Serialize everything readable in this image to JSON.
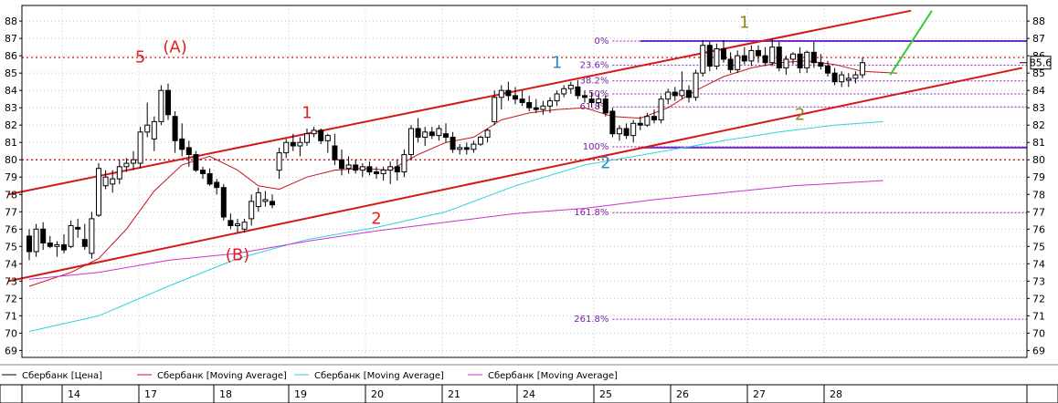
{
  "chart_data": {
    "type": "candlestick",
    "title": "",
    "xlabel": "",
    "ylabel": "",
    "ylim": [
      68.6,
      88.9
    ],
    "y_ticks": [
      69,
      70,
      71,
      72,
      73,
      74,
      75,
      76,
      77,
      78,
      79,
      80,
      81,
      82,
      83,
      84,
      85,
      86,
      87,
      88
    ],
    "x_ticks": [
      "14",
      "17",
      "18",
      "19",
      "20",
      "21",
      "24",
      "25",
      "26",
      "27",
      "28"
    ],
    "last_price_label": "85.6",
    "series": [
      {
        "name": "Сбербанк [Цена]",
        "color": "#000000",
        "kind": "candles",
        "values": [
          [
            75.6,
            76.0,
            74.2,
            74.7
          ],
          [
            74.7,
            76.3,
            74.4,
            76.0
          ],
          [
            76.0,
            76.4,
            74.8,
            75.2
          ],
          [
            75.2,
            75.6,
            74.9,
            75.0
          ],
          [
            75.0,
            75.3,
            74.4,
            75.1
          ],
          [
            75.1,
            75.7,
            74.6,
            74.8
          ],
          [
            75.0,
            76.5,
            74.9,
            76.2
          ],
          [
            76.1,
            76.6,
            75.5,
            76.0
          ],
          [
            75.4,
            76.3,
            74.8,
            75.0
          ],
          [
            74.6,
            77.0,
            74.3,
            76.6
          ],
          [
            76.8,
            79.8,
            76.7,
            79.5
          ],
          [
            78.5,
            79.4,
            78.3,
            79.0
          ],
          [
            78.6,
            79.4,
            78.1,
            78.9
          ],
          [
            78.9,
            80.0,
            78.6,
            79.6
          ],
          [
            79.6,
            80.1,
            79.3,
            79.8
          ],
          [
            79.8,
            80.5,
            79.4,
            80.0
          ],
          [
            79.8,
            81.9,
            79.5,
            81.6
          ],
          [
            81.6,
            83.3,
            81.3,
            82.0
          ],
          [
            81.2,
            82.5,
            80.5,
            82.2
          ],
          [
            82.2,
            84.3,
            82.0,
            84.0
          ],
          [
            84.0,
            84.4,
            82.3,
            82.6
          ],
          [
            82.5,
            82.8,
            80.4,
            81.1
          ],
          [
            81.2,
            82.1,
            80.2,
            80.6
          ],
          [
            80.7,
            81.1,
            79.6,
            80.3
          ],
          [
            80.3,
            80.5,
            79.3,
            79.4
          ],
          [
            79.4,
            79.6,
            78.9,
            79.2
          ],
          [
            79.2,
            79.5,
            78.5,
            78.6
          ],
          [
            78.7,
            78.9,
            78.0,
            78.4
          ],
          [
            78.4,
            78.6,
            76.5,
            76.7
          ],
          [
            76.5,
            76.9,
            76.0,
            76.2
          ],
          [
            76.2,
            76.6,
            75.8,
            76.3
          ],
          [
            76.0,
            76.6,
            75.8,
            76.4
          ],
          [
            76.6,
            78.0,
            76.2,
            77.6
          ],
          [
            77.3,
            78.4,
            77.0,
            78.1
          ],
          [
            77.6,
            78.2,
            77.3,
            77.7
          ],
          [
            77.6,
            78.0,
            77.2,
            77.4
          ],
          [
            79.4,
            80.7,
            78.9,
            80.4
          ],
          [
            80.4,
            81.2,
            80.1,
            81.0
          ],
          [
            81.0,
            81.5,
            80.5,
            80.8
          ],
          [
            80.8,
            81.3,
            80.2,
            81.0
          ],
          [
            81.0,
            81.8,
            80.8,
            81.5
          ],
          [
            81.5,
            81.9,
            81.3,
            81.7
          ],
          [
            81.7,
            81.8,
            80.9,
            81.1
          ],
          [
            81.1,
            81.5,
            80.4,
            81.4
          ],
          [
            80.8,
            81.5,
            79.7,
            80.0
          ],
          [
            80.0,
            80.6,
            79.1,
            79.5
          ],
          [
            79.5,
            80.2,
            79.2,
            79.7
          ],
          [
            79.7,
            80.0,
            79.2,
            79.4
          ],
          [
            79.4,
            79.8,
            79.0,
            79.6
          ],
          [
            79.6,
            79.9,
            79.1,
            79.3
          ],
          [
            79.3,
            79.6,
            78.9,
            79.2
          ],
          [
            79.2,
            79.6,
            78.8,
            79.4
          ],
          [
            79.4,
            79.9,
            78.6,
            79.6
          ],
          [
            79.6,
            80.0,
            78.8,
            79.3
          ],
          [
            79.3,
            80.6,
            79.0,
            80.3
          ],
          [
            80.3,
            82.0,
            80.0,
            81.8
          ],
          [
            81.8,
            82.4,
            81.0,
            81.3
          ],
          [
            81.3,
            81.9,
            80.8,
            81.6
          ],
          [
            81.6,
            81.9,
            81.2,
            81.4
          ],
          [
            81.4,
            82.0,
            81.1,
            81.8
          ],
          [
            81.5,
            82.1,
            81.0,
            81.3
          ],
          [
            81.3,
            81.6,
            80.4,
            80.6
          ],
          [
            80.6,
            80.9,
            80.3,
            80.7
          ],
          [
            80.7,
            81.0,
            80.3,
            80.6
          ],
          [
            80.6,
            81.1,
            80.4,
            80.9
          ],
          [
            80.9,
            81.4,
            80.8,
            81.3
          ],
          [
            81.3,
            81.8,
            81.0,
            81.7
          ],
          [
            82.2,
            84.0,
            82.0,
            83.6
          ],
          [
            83.6,
            84.3,
            82.9,
            84.0
          ],
          [
            84.0,
            84.5,
            83.4,
            83.7
          ],
          [
            83.7,
            84.2,
            83.2,
            83.5
          ],
          [
            83.5,
            84.0,
            83.1,
            83.3
          ],
          [
            83.3,
            83.7,
            82.8,
            83.0
          ],
          [
            83.0,
            83.5,
            82.7,
            82.9
          ],
          [
            82.9,
            83.4,
            82.6,
            83.1
          ],
          [
            83.1,
            83.6,
            82.7,
            83.4
          ],
          [
            83.4,
            84.0,
            83.1,
            83.8
          ],
          [
            83.8,
            84.3,
            83.6,
            84.1
          ],
          [
            84.1,
            84.5,
            83.8,
            84.3
          ],
          [
            84.2,
            84.6,
            83.5,
            83.7
          ],
          [
            83.7,
            84.0,
            83.3,
            83.6
          ],
          [
            83.5,
            83.9,
            83.0,
            83.3
          ],
          [
            83.3,
            83.8,
            83.0,
            83.5
          ],
          [
            83.5,
            83.7,
            82.5,
            82.7
          ],
          [
            82.8,
            83.0,
            81.3,
            81.5
          ],
          [
            81.5,
            82.0,
            81.1,
            81.8
          ],
          [
            81.8,
            82.1,
            81.2,
            81.4
          ],
          [
            81.4,
            82.3,
            81.0,
            82.1
          ],
          [
            82.1,
            82.5,
            81.7,
            82.0
          ],
          [
            82.0,
            82.7,
            81.9,
            82.5
          ],
          [
            82.5,
            82.9,
            82.1,
            82.3
          ],
          [
            82.3,
            83.7,
            82.1,
            83.5
          ],
          [
            83.5,
            84.1,
            83.2,
            83.9
          ],
          [
            83.9,
            84.2,
            83.4,
            83.7
          ],
          [
            83.7,
            85.1,
            83.5,
            84.0
          ],
          [
            84.0,
            84.3,
            83.3,
            83.6
          ],
          [
            83.6,
            85.2,
            83.4,
            85.0
          ],
          [
            85.0,
            86.9,
            84.8,
            86.6
          ],
          [
            86.6,
            86.8,
            85.1,
            85.4
          ],
          [
            85.4,
            86.7,
            85.2,
            86.4
          ],
          [
            86.4,
            86.9,
            85.6,
            85.8
          ],
          [
            85.8,
            86.2,
            85.0,
            85.2
          ],
          [
            85.2,
            86.3,
            85.0,
            86.0
          ],
          [
            86.0,
            86.5,
            85.5,
            85.7
          ],
          [
            85.7,
            86.6,
            85.4,
            86.3
          ],
          [
            86.3,
            86.6,
            85.6,
            86.0
          ],
          [
            86.0,
            86.5,
            85.4,
            85.6
          ],
          [
            85.6,
            87.0,
            85.4,
            86.5
          ],
          [
            86.5,
            86.8,
            85.1,
            85.3
          ],
          [
            85.3,
            86.0,
            84.9,
            85.8
          ],
          [
            85.8,
            86.2,
            85.5,
            86.1
          ],
          [
            86.1,
            86.5,
            85.0,
            85.3
          ],
          [
            85.3,
            86.3,
            85.0,
            86.2
          ],
          [
            86.2,
            86.8,
            85.3,
            85.6
          ],
          [
            85.6,
            86.1,
            85.2,
            85.4
          ],
          [
            85.4,
            85.7,
            84.8,
            85.0
          ],
          [
            85.0,
            85.3,
            84.3,
            84.5
          ],
          [
            84.5,
            85.1,
            84.2,
            84.9
          ],
          [
            84.6,
            85.0,
            84.2,
            84.7
          ],
          [
            84.7,
            85.1,
            84.4,
            84.9
          ],
          [
            84.9,
            85.9,
            84.7,
            85.6
          ]
        ]
      },
      {
        "name": "Сбербанк [Moving Average]",
        "color": "#c8141e",
        "kind": "line",
        "points": [
          [
            0,
            72.7
          ],
          [
            6,
            73.5
          ],
          [
            10,
            74.3
          ],
          [
            14,
            76.0
          ],
          [
            18,
            78.2
          ],
          [
            22,
            79.7
          ],
          [
            26,
            80.2
          ],
          [
            30,
            79.4
          ],
          [
            33,
            78.5
          ],
          [
            36,
            78.3
          ],
          [
            40,
            79.0
          ],
          [
            44,
            79.4
          ],
          [
            48,
            79.5
          ],
          [
            52,
            79.4
          ],
          [
            56,
            80.3
          ],
          [
            60,
            81.0
          ],
          [
            64,
            81.3
          ],
          [
            68,
            82.3
          ],
          [
            72,
            82.7
          ],
          [
            76,
            82.9
          ],
          [
            80,
            83.0
          ],
          [
            84,
            82.5
          ],
          [
            88,
            82.4
          ],
          [
            92,
            83.0
          ],
          [
            96,
            84.0
          ],
          [
            100,
            84.8
          ],
          [
            104,
            85.3
          ],
          [
            108,
            85.6
          ],
          [
            112,
            85.7
          ],
          [
            116,
            85.5
          ],
          [
            120,
            85.1
          ],
          [
            125,
            85.0
          ]
        ]
      },
      {
        "name": "Сбербанк [Moving Average]",
        "color": "#2fd3de",
        "kind": "line",
        "points": [
          [
            0,
            70.1
          ],
          [
            10,
            71.0
          ],
          [
            20,
            72.7
          ],
          [
            30,
            74.3
          ],
          [
            40,
            75.4
          ],
          [
            50,
            76.1
          ],
          [
            60,
            77.0
          ],
          [
            70,
            78.5
          ],
          [
            80,
            79.7
          ],
          [
            90,
            80.4
          ],
          [
            100,
            81.1
          ],
          [
            108,
            81.6
          ],
          [
            116,
            82.0
          ],
          [
            123,
            82.2
          ]
        ]
      },
      {
        "name": "Сбербанк [Moving Average]",
        "color": "#cc33cc",
        "kind": "line",
        "points": [
          [
            0,
            73.1
          ],
          [
            10,
            73.5
          ],
          [
            20,
            74.2
          ],
          [
            30,
            74.6
          ],
          [
            40,
            75.3
          ],
          [
            50,
            75.9
          ],
          [
            60,
            76.4
          ],
          [
            70,
            76.9
          ],
          [
            80,
            77.2
          ],
          [
            90,
            77.7
          ],
          [
            100,
            78.1
          ],
          [
            110,
            78.5
          ],
          [
            123,
            78.8
          ]
        ]
      }
    ],
    "channel_lines": [
      {
        "color": "#d41818",
        "from": [
          -3,
          78.0
        ],
        "to": [
          127,
          88.6
        ]
      },
      {
        "color": "#d41818",
        "from": [
          -3,
          73.0
        ],
        "to": [
          143,
          85.3
        ]
      }
    ],
    "green_line": {
      "color": "#33cc33",
      "from": [
        124,
        84.9
      ],
      "to": [
        130,
        88.6
      ]
    },
    "horizontal_levels": [
      {
        "value": 80.0,
        "color": "#cc0000",
        "style": "dotted"
      },
      {
        "value": 85.9,
        "color": "#cc0000",
        "style": "dotted"
      },
      {
        "value": 86.85,
        "color": "#6a2ee0",
        "style": "solid",
        "from_x": 88
      },
      {
        "value": 80.7,
        "color": "#6a2ee0",
        "style": "solid",
        "from_x": 88
      }
    ],
    "fibonacci": {
      "color": "#8e24aa",
      "from_x": 84,
      "levels": [
        {
          "label": "0%",
          "value": 86.85
        },
        {
          "label": "23.6%",
          "value": 85.45
        },
        {
          "label": "38.2%",
          "value": 84.55
        },
        {
          "label": "50%",
          "value": 83.8
        },
        {
          "label": "61.8%",
          "value": 83.05
        },
        {
          "label": "100%",
          "value": 80.75
        },
        {
          "label": "161.8%",
          "value": 76.95
        },
        {
          "label": "261.8%",
          "value": 70.8
        }
      ]
    },
    "annotations": [
      {
        "text": "5",
        "x": 16,
        "y": 85.6,
        "color": "#e02020"
      },
      {
        "text": "(A)",
        "x": 21,
        "y": 86.2,
        "color": "#e02020"
      },
      {
        "text": "1",
        "x": 40,
        "y": 82.4,
        "color": "#e02020"
      },
      {
        "text": "(B)",
        "x": 30,
        "y": 74.2,
        "color": "#e02020"
      },
      {
        "text": "2",
        "x": 50,
        "y": 76.3,
        "color": "#e02020"
      },
      {
        "text": "1",
        "x": 76,
        "y": 85.3,
        "color": "#2b8ccf"
      },
      {
        "text": "2",
        "x": 83,
        "y": 79.5,
        "color": "#2b8ccf"
      },
      {
        "text": "1",
        "x": 103,
        "y": 87.6,
        "color": "#8a8a1a"
      },
      {
        "text": "2",
        "x": 111,
        "y": 82.3,
        "color": "#8a8a1a"
      }
    ],
    "legend": {
      "position": "bottom",
      "items": [
        {
          "label": "Сбербанк [Цена]",
          "color": "#000000"
        },
        {
          "label": "Сбербанк [Moving Average]",
          "color": "#c8141e"
        },
        {
          "label": "Сбербанк [Moving Average]",
          "color": "#2fd3de"
        },
        {
          "label": "Сбербанк [Moving Average]",
          "color": "#cc33cc"
        }
      ]
    }
  }
}
